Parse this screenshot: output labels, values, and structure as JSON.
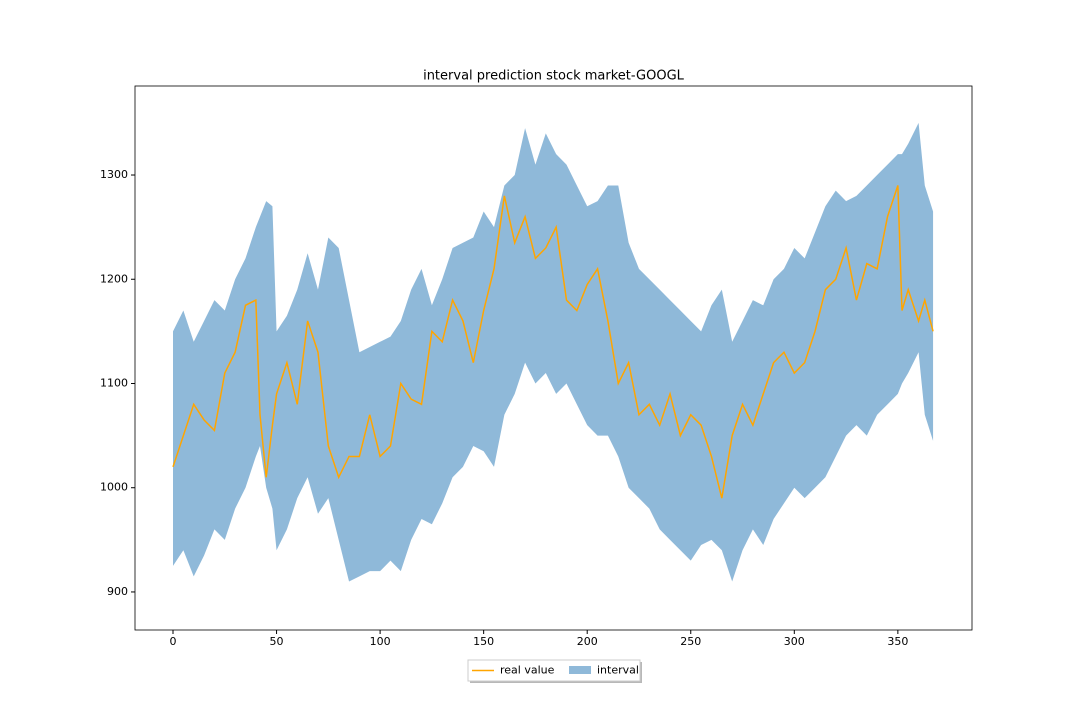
{
  "chart_data": {
    "type": "line-interval",
    "title": "interval prediction stock market-GOOGL",
    "x": [
      0,
      5,
      10,
      15,
      20,
      25,
      30,
      35,
      40,
      42,
      45,
      48,
      50,
      55,
      60,
      65,
      70,
      75,
      80,
      85,
      90,
      95,
      100,
      105,
      110,
      115,
      120,
      125,
      130,
      135,
      140,
      145,
      150,
      155,
      160,
      165,
      170,
      175,
      180,
      185,
      190,
      195,
      200,
      205,
      210,
      215,
      220,
      225,
      230,
      235,
      240,
      245,
      250,
      255,
      260,
      265,
      270,
      275,
      280,
      285,
      290,
      295,
      300,
      305,
      310,
      315,
      320,
      325,
      330,
      335,
      340,
      345,
      350,
      352,
      355,
      360,
      363,
      367
    ],
    "series": [
      {
        "name": "real value",
        "color": "#ffa500",
        "values": [
          1020,
          1050,
          1080,
          1065,
          1055,
          1110,
          1130,
          1175,
          1180,
          1070,
          1010,
          1060,
          1090,
          1120,
          1080,
          1160,
          1130,
          1040,
          1010,
          1030,
          1030,
          1070,
          1030,
          1040,
          1100,
          1085,
          1080,
          1150,
          1140,
          1180,
          1160,
          1120,
          1170,
          1210,
          1280,
          1235,
          1260,
          1220,
          1230,
          1250,
          1180,
          1170,
          1195,
          1210,
          1160,
          1100,
          1120,
          1070,
          1080,
          1060,
          1090,
          1050,
          1070,
          1060,
          1030,
          990,
          1050,
          1080,
          1060,
          1090,
          1120,
          1130,
          1110,
          1120,
          1150,
          1190,
          1200,
          1230,
          1180,
          1215,
          1210,
          1260,
          1290,
          1170,
          1190,
          1160,
          1180,
          1150
        ]
      },
      {
        "name": "interval",
        "color": "#8fb9d9",
        "upper": [
          1150,
          1170,
          1140,
          1160,
          1180,
          1170,
          1200,
          1220,
          1250,
          1260,
          1275,
          1270,
          1150,
          1165,
          1190,
          1225,
          1190,
          1240,
          1230,
          1180,
          1130,
          1135,
          1140,
          1145,
          1160,
          1190,
          1210,
          1175,
          1200,
          1230,
          1235,
          1240,
          1265,
          1250,
          1290,
          1300,
          1345,
          1310,
          1340,
          1320,
          1310,
          1290,
          1270,
          1275,
          1290,
          1290,
          1235,
          1210,
          1200,
          1190,
          1180,
          1170,
          1160,
          1150,
          1175,
          1190,
          1140,
          1160,
          1180,
          1175,
          1200,
          1210,
          1230,
          1220,
          1245,
          1270,
          1285,
          1275,
          1280,
          1290,
          1300,
          1310,
          1320,
          1320,
          1330,
          1350,
          1290,
          1265
        ],
        "lower": [
          925,
          940,
          915,
          935,
          960,
          950,
          980,
          1000,
          1030,
          1040,
          1000,
          980,
          940,
          960,
          990,
          1010,
          975,
          990,
          950,
          910,
          915,
          920,
          920,
          930,
          920,
          950,
          970,
          965,
          985,
          1010,
          1020,
          1040,
          1035,
          1020,
          1070,
          1090,
          1120,
          1100,
          1110,
          1090,
          1100,
          1080,
          1060,
          1050,
          1050,
          1030,
          1000,
          990,
          980,
          960,
          950,
          940,
          930,
          945,
          950,
          940,
          910,
          940,
          960,
          945,
          970,
          985,
          1000,
          990,
          1000,
          1010,
          1030,
          1050,
          1060,
          1050,
          1070,
          1080,
          1090,
          1100,
          1110,
          1130,
          1070,
          1045
        ]
      }
    ],
    "xlim": [
      -18.35,
      385.8
    ],
    "xticks": [
      0,
      50,
      100,
      150,
      200,
      250,
      300,
      350
    ],
    "ylim": [
      863.5,
      1385.4
    ],
    "yticks": [
      900,
      1000,
      1100,
      1200,
      1300
    ],
    "legend": "lower center"
  }
}
